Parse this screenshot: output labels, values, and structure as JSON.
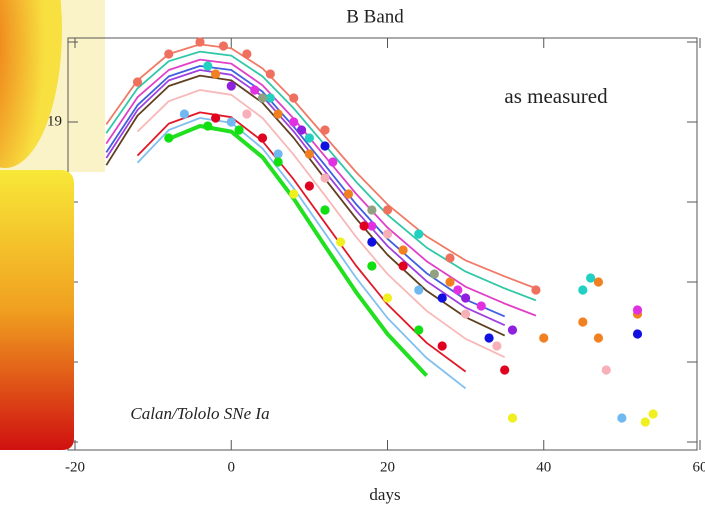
{
  "chart_data": {
    "type": "line",
    "title": "B Band",
    "x_label": "days",
    "annotations": [
      "as measured",
      "Calan/Tololo SNe Ia"
    ],
    "xlim": [
      -20,
      60
    ],
    "xticks": [
      -20,
      0,
      20,
      40,
      60
    ],
    "ylim": [
      -20,
      -15
    ],
    "yticks": [
      -20,
      -19,
      -18,
      -17,
      -16,
      -15
    ],
    "x": [
      -16,
      -12,
      -8,
      -4,
      0,
      4,
      8,
      12,
      16,
      20,
      25,
      30,
      35,
      39
    ],
    "series": [
      {
        "color": "#f07a66",
        "values": [
          -18.97,
          -19.52,
          -19.85,
          -19.97,
          -19.92,
          -19.67,
          -19.27,
          -18.82,
          -18.37,
          -17.97,
          -17.57,
          -17.27,
          -17.07,
          -16.92
        ]
      },
      {
        "color": "#30c8a8",
        "values": [
          -18.86,
          -19.42,
          -19.76,
          -19.88,
          -19.83,
          -19.57,
          -19.17,
          -18.71,
          -18.25,
          -17.84,
          -17.43,
          -17.13,
          -16.92,
          -16.77
        ]
      },
      {
        "color": "#e040c8",
        "values": [
          -18.73,
          -19.31,
          -19.65,
          -19.78,
          -19.73,
          -19.46,
          -19.04,
          -18.57,
          -18.1,
          -17.68,
          -17.26,
          -16.94,
          -16.73,
          -16.58
        ]
      },
      {
        "color": "#4060e0",
        "values": [
          -18.62,
          -19.21,
          -19.57,
          -19.7,
          -19.65,
          -19.38,
          -18.94,
          -18.46,
          -17.97,
          -17.54,
          -17.11,
          -16.78,
          -16.57,
          null
        ]
      },
      {
        "color": "#a040e0",
        "values": [
          -18.55,
          -19.15,
          -19.52,
          -19.65,
          -19.59,
          -19.32,
          -18.88,
          -18.38,
          -17.89,
          -17.45,
          -17.01,
          -16.68,
          -16.46,
          null
        ]
      },
      {
        "color": "#604020",
        "values": [
          -18.46,
          -19.08,
          -19.45,
          -19.58,
          -19.52,
          -19.24,
          -18.8,
          -18.29,
          -17.79,
          -17.34,
          -16.89,
          -16.56,
          -16.33,
          null
        ]
      },
      {
        "color": "#f8b8b8",
        "values": [
          null,
          -18.88,
          -19.26,
          -19.4,
          -19.34,
          -19.05,
          -18.59,
          -18.08,
          -17.56,
          -17.1,
          -16.64,
          -16.29,
          -16.06,
          null
        ]
      },
      {
        "color": "#e01828",
        "values": [
          null,
          -18.58,
          -18.98,
          -19.12,
          -19.06,
          -18.76,
          -18.28,
          -17.74,
          -17.2,
          -16.72,
          -16.24,
          -15.88,
          null,
          null
        ]
      },
      {
        "color": "#80c0f0",
        "values": [
          null,
          -18.49,
          -18.9,
          -19.05,
          -18.99,
          -18.67,
          -18.17,
          -17.61,
          -17.05,
          -16.55,
          -16.05,
          -15.67,
          null,
          null
        ]
      },
      {
        "color": "#20e020",
        "values": [
          null,
          null,
          -18.79,
          -18.95,
          -18.88,
          -18.56,
          -18.04,
          -17.45,
          -16.87,
          -16.35,
          -15.83,
          null,
          null,
          null
        ]
      }
    ],
    "points": [
      {
        "color": "#f07060",
        "x": [
          -12,
          -8,
          -4,
          -1,
          2,
          5,
          8,
          12,
          20,
          28,
          39
        ],
        "values": [
          -19.5,
          -19.85,
          -20.0,
          -19.95,
          -19.85,
          -19.6,
          -19.3,
          -18.9,
          -17.9,
          -17.3,
          -16.9
        ]
      },
      {
        "color": "#f08020",
        "x": [
          -2,
          6,
          10,
          15,
          22,
          28,
          40,
          45,
          47,
          47,
          52
        ],
        "values": [
          -19.6,
          -19.1,
          -18.6,
          -18.1,
          -17.4,
          -17.0,
          -16.3,
          -16.5,
          -16.3,
          -17.0,
          -16.6
        ]
      },
      {
        "color": "#e030e0",
        "x": [
          3,
          8,
          13,
          18,
          29,
          32,
          52
        ],
        "values": [
          -19.4,
          -19.0,
          -18.5,
          -17.7,
          -16.9,
          -16.7,
          -16.65
        ]
      },
      {
        "color": "#1010e0",
        "x": [
          12,
          18,
          27,
          33,
          52
        ],
        "values": [
          -18.7,
          -17.5,
          -16.8,
          -16.3,
          -16.35
        ]
      },
      {
        "color": "#20d0c0",
        "x": [
          -3,
          5,
          10,
          24,
          45,
          46
        ],
        "values": [
          -19.7,
          -19.3,
          -18.8,
          -17.6,
          -16.9,
          -17.05
        ]
      },
      {
        "color": "#9020e0",
        "x": [
          0,
          9,
          30,
          36
        ],
        "values": [
          -19.45,
          -18.9,
          -16.8,
          -16.4
        ]
      },
      {
        "color": "#e00020",
        "x": [
          -2,
          4,
          10,
          17,
          22,
          27,
          35
        ],
        "values": [
          -19.05,
          -18.8,
          -18.2,
          -17.7,
          -17.2,
          -16.2,
          -15.9
        ]
      },
      {
        "color": "#f8b0b8",
        "x": [
          2,
          12,
          20,
          30,
          34,
          48
        ],
        "values": [
          -19.1,
          -18.3,
          -17.6,
          -16.6,
          -16.2,
          -15.9
        ]
      },
      {
        "color": "#70b8f0",
        "x": [
          -6,
          0,
          6,
          12,
          24,
          50
        ],
        "values": [
          -19.1,
          -19.0,
          -18.6,
          -17.9,
          -16.9,
          -15.3
        ]
      },
      {
        "color": "#10e010",
        "x": [
          -8,
          -3,
          1,
          6,
          12,
          18,
          24
        ],
        "values": [
          -18.8,
          -18.95,
          -18.9,
          -18.5,
          -17.9,
          -17.2,
          -16.4
        ]
      },
      {
        "color": "#f0f020",
        "x": [
          8,
          14,
          20,
          36,
          53,
          54
        ],
        "values": [
          -18.1,
          -17.5,
          -16.8,
          -15.3,
          -15.25,
          -15.35
        ]
      },
      {
        "color": "#90a080",
        "x": [
          4,
          18,
          26
        ],
        "values": [
          -19.3,
          -17.9,
          -17.1
        ]
      }
    ]
  }
}
